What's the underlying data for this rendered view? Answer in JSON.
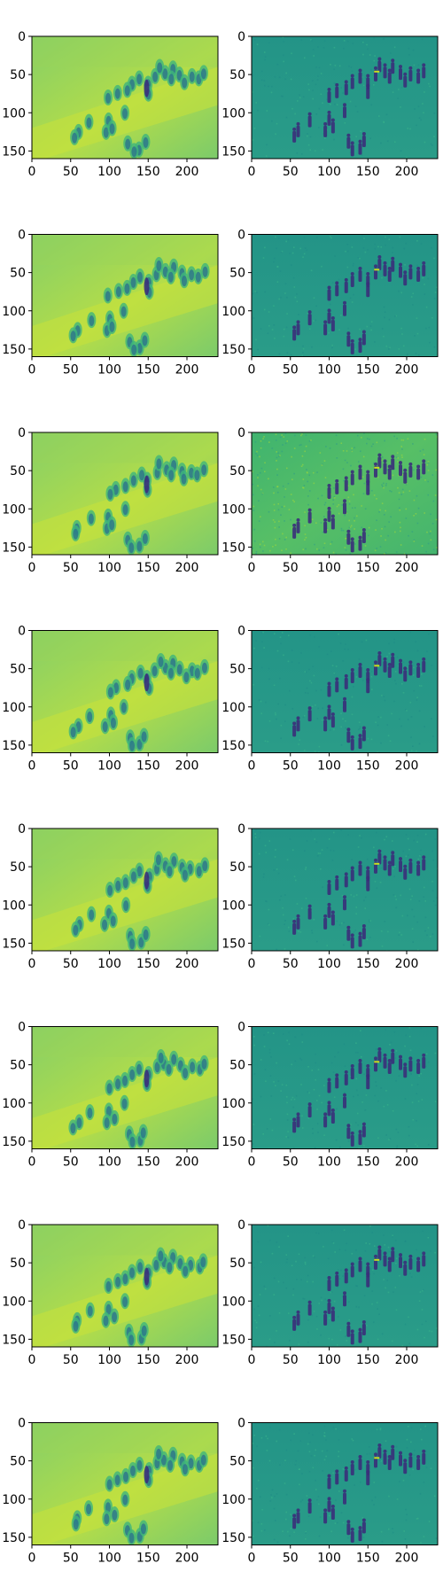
{
  "figure": {
    "rows": 8,
    "cols": 2,
    "x_ticks": [
      "0",
      "50",
      "100",
      "150",
      "200"
    ],
    "y_ticks": [
      "0",
      "50",
      "100",
      "150"
    ],
    "x_data_range": [
      0,
      240
    ],
    "y_data_range": [
      0,
      160
    ],
    "colormap": "viridis"
  },
  "panels": [
    {
      "row": 0,
      "col": 0,
      "kind": "smooth"
    },
    {
      "row": 0,
      "col": 1,
      "kind": "residual"
    },
    {
      "row": 1,
      "col": 0,
      "kind": "smooth"
    },
    {
      "row": 1,
      "col": 1,
      "kind": "residual"
    },
    {
      "row": 2,
      "col": 0,
      "kind": "smooth"
    },
    {
      "row": 2,
      "col": 1,
      "kind": "residual-noisy"
    },
    {
      "row": 3,
      "col": 0,
      "kind": "smooth"
    },
    {
      "row": 3,
      "col": 1,
      "kind": "residual"
    },
    {
      "row": 4,
      "col": 0,
      "kind": "smooth"
    },
    {
      "row": 4,
      "col": 1,
      "kind": "residual"
    },
    {
      "row": 5,
      "col": 0,
      "kind": "smooth"
    },
    {
      "row": 5,
      "col": 1,
      "kind": "residual"
    },
    {
      "row": 6,
      "col": 0,
      "kind": "smooth"
    },
    {
      "row": 6,
      "col": 1,
      "kind": "residual"
    },
    {
      "row": 7,
      "col": 0,
      "kind": "smooth"
    },
    {
      "row": 7,
      "col": 1,
      "kind": "residual"
    }
  ],
  "colors": {
    "smooth_bg": "#8fd163",
    "smooth_bright": "#c9e13a",
    "smooth_mid": "#3fb57a",
    "smooth_dark": "#2a6f8e",
    "figure_dark": "#3b2a7a",
    "residual_bg": "#26978a",
    "residual_light": "#3bb68a",
    "residual_dark": "#3a2f7a",
    "residual_bright": "#c8e020"
  }
}
